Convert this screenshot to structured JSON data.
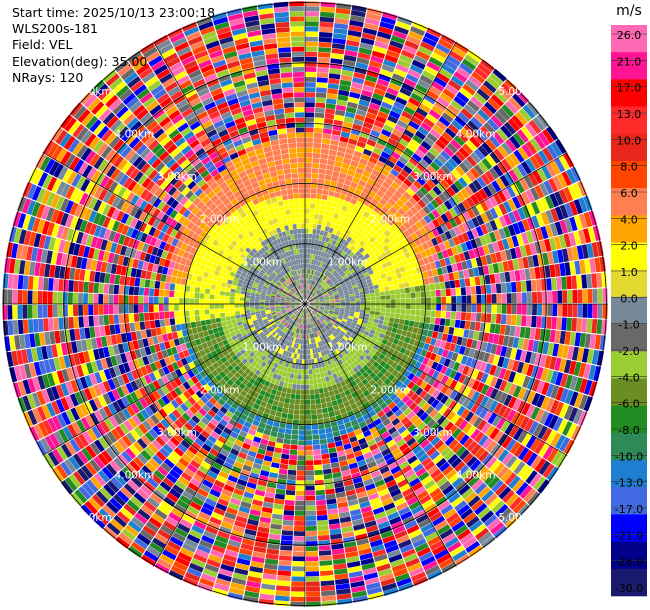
{
  "info": {
    "start_time": "Start time: 2025/10/13 23:00:18",
    "station": "WLS200s-181",
    "field": "Field: VEL",
    "elevation": "Elevation(deg): 35.00",
    "nrays": "NRays: 120"
  },
  "plot": {
    "range_rings_km": [
      "1.00km",
      "2.00km",
      "3.00km",
      "4.00km",
      "5.00km"
    ],
    "colors": {
      "ring_line": "#000000",
      "ring_label": "#ffffff",
      "background": "#ffffff"
    }
  },
  "colorbar": {
    "unit": "m/s",
    "ticks": [
      "26.0",
      "21.0",
      "17.0",
      "13.0",
      "10.0",
      "8.0",
      "6.0",
      "4.0",
      "2.0",
      "1.0",
      "0.0",
      "-1.0",
      "-2.0",
      "-4.0",
      "-6.0",
      "-8.0",
      "-10.0",
      "-13.0",
      "-17.0",
      "-21.0",
      "-26.0",
      "-30.0"
    ],
    "colors": [
      "#ff69b4",
      "#ff1493",
      "#ff0000",
      "#ff2a2a",
      "#e8261b",
      "#ff4500",
      "#ff7f50",
      "#ffa500",
      "#ffff00",
      "#e3d82f",
      "#778899",
      "#696969",
      "#9acd32",
      "#6b8e23",
      "#228b22",
      "#2e8b57",
      "#1e7fd0",
      "#4169e1",
      "#0000ff",
      "#00008b",
      "#191970"
    ]
  }
}
